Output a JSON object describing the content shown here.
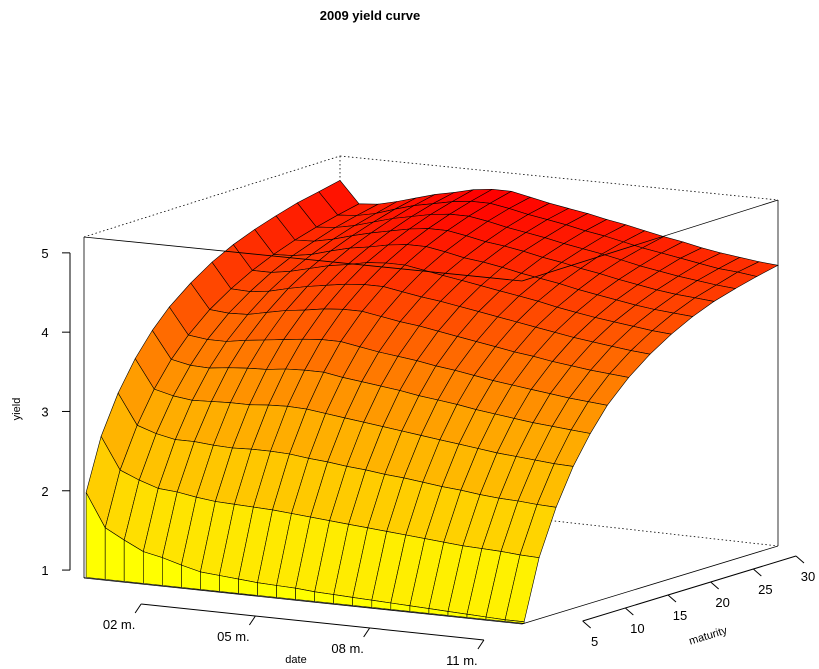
{
  "chart_data": {
    "type": "surface",
    "title": "2009 yield curve",
    "xlabel": "date",
    "ylabel": "maturity",
    "zlabel": "yield",
    "date_ticks": [
      "02 m.",
      "05 m.",
      "08 m.",
      "11 m."
    ],
    "maturity_ticks": [
      5,
      10,
      15,
      20,
      25,
      30
    ],
    "yield_ticks": [
      1,
      2,
      3,
      4,
      5
    ],
    "date_range": [
      0.5,
      12
    ],
    "maturity_range": [
      0,
      30
    ],
    "yield_range": [
      0.9,
      5.2
    ],
    "surface_grid": {
      "dates": [
        "0.5",
        "1.0",
        "1.5",
        "2.0",
        "2.5",
        "3.0",
        "3.5",
        "4.0",
        "4.5",
        "5.0",
        "5.5",
        "6.0",
        "6.5",
        "7.0",
        "7.5",
        "8.0",
        "8.5",
        "9.0",
        "9.5",
        "10.0",
        "10.5",
        "11.0",
        "11.5",
        "12.0"
      ],
      "maturities": [
        0.25,
        2,
        4,
        6,
        8,
        10,
        12.5,
        15,
        17.5,
        20,
        22.5,
        25,
        27.5,
        30
      ],
      "yields": [
        [
          1.97,
          2.62,
          3.1,
          3.47,
          3.76,
          3.99,
          4.21,
          4.39,
          4.53,
          4.64,
          4.73,
          4.81,
          4.87,
          4.93
        ],
        [
          1.55,
          2.22,
          2.72,
          3.11,
          3.42,
          3.66,
          3.9,
          4.08,
          4.23,
          4.35,
          4.45,
          4.53,
          4.6,
          4.66
        ],
        [
          1.42,
          2.12,
          2.64,
          3.05,
          3.37,
          3.63,
          3.88,
          4.07,
          4.23,
          4.36,
          4.46,
          4.55,
          4.62,
          4.68
        ],
        [
          1.3,
          2.04,
          2.59,
          3.02,
          3.36,
          3.63,
          3.89,
          4.1,
          4.27,
          4.4,
          4.51,
          4.6,
          4.67,
          4.74
        ],
        [
          1.25,
          2.02,
          2.59,
          3.03,
          3.39,
          3.67,
          3.94,
          4.16,
          4.33,
          4.47,
          4.58,
          4.67,
          4.75,
          4.81
        ],
        [
          1.18,
          1.98,
          2.57,
          3.04,
          3.41,
          3.7,
          3.99,
          4.21,
          4.39,
          4.53,
          4.64,
          4.74,
          4.82,
          4.88
        ],
        [
          1.12,
          1.95,
          2.56,
          3.04,
          3.42,
          3.73,
          4.02,
          4.25,
          4.43,
          4.57,
          4.69,
          4.79,
          4.87,
          4.93
        ],
        [
          1.1,
          1.94,
          2.57,
          3.06,
          3.45,
          3.76,
          4.06,
          4.29,
          4.48,
          4.62,
          4.74,
          4.84,
          4.92,
          4.99
        ],
        [
          1.08,
          1.93,
          2.57,
          3.07,
          3.46,
          3.78,
          4.08,
          4.31,
          4.5,
          4.65,
          4.77,
          4.87,
          4.95,
          5.02
        ],
        [
          1.06,
          1.92,
          2.56,
          3.06,
          3.46,
          3.78,
          4.08,
          4.31,
          4.5,
          4.65,
          4.77,
          4.87,
          4.95,
          5.02
        ],
        [
          1.05,
          1.9,
          2.53,
          3.03,
          3.42,
          3.74,
          4.04,
          4.27,
          4.46,
          4.61,
          4.73,
          4.83,
          4.91,
          4.97
        ],
        [
          1.04,
          1.88,
          2.51,
          3.0,
          3.39,
          3.7,
          4.0,
          4.23,
          4.42,
          4.56,
          4.68,
          4.78,
          4.86,
          4.92
        ],
        [
          1.02,
          1.86,
          2.48,
          2.97,
          3.36,
          3.67,
          3.97,
          4.2,
          4.38,
          4.53,
          4.65,
          4.74,
          4.82,
          4.88
        ],
        [
          1.01,
          1.84,
          2.46,
          2.94,
          3.33,
          3.64,
          3.93,
          4.16,
          4.34,
          4.49,
          4.61,
          4.7,
          4.78,
          4.84
        ],
        [
          1.0,
          1.82,
          2.43,
          2.91,
          3.29,
          3.6,
          3.89,
          4.12,
          4.3,
          4.44,
          4.56,
          4.65,
          4.73,
          4.79
        ],
        [
          0.99,
          1.8,
          2.41,
          2.88,
          3.26,
          3.57,
          3.85,
          4.08,
          4.26,
          4.4,
          4.52,
          4.61,
          4.69,
          4.75
        ],
        [
          0.98,
          1.78,
          2.38,
          2.85,
          3.23,
          3.53,
          3.81,
          4.04,
          4.22,
          4.36,
          4.47,
          4.57,
          4.64,
          4.7
        ],
        [
          0.97,
          1.76,
          2.35,
          2.82,
          3.19,
          3.49,
          3.77,
          4.0,
          4.17,
          4.31,
          4.43,
          4.52,
          4.59,
          4.65
        ],
        [
          0.96,
          1.74,
          2.33,
          2.79,
          3.16,
          3.46,
          3.74,
          3.96,
          4.13,
          4.27,
          4.38,
          4.47,
          4.55,
          4.61
        ],
        [
          0.95,
          1.72,
          2.3,
          2.76,
          3.13,
          3.43,
          3.7,
          3.92,
          4.09,
          4.23,
          4.34,
          4.43,
          4.51,
          4.56
        ],
        [
          0.94,
          1.71,
          2.28,
          2.74,
          3.1,
          3.4,
          3.67,
          3.89,
          4.06,
          4.19,
          4.3,
          4.39,
          4.47,
          4.52
        ],
        [
          0.93,
          1.7,
          2.27,
          2.72,
          3.08,
          3.37,
          3.64,
          3.86,
          4.03,
          4.16,
          4.27,
          4.36,
          4.43,
          4.49
        ],
        [
          0.92,
          1.68,
          2.25,
          2.7,
          3.06,
          3.35,
          3.62,
          3.83,
          4.0,
          4.14,
          4.25,
          4.33,
          4.41,
          4.46
        ],
        [
          0.92,
          1.67,
          2.24,
          2.69,
          3.04,
          3.33,
          3.6,
          3.81,
          3.98,
          4.12,
          4.23,
          4.31,
          4.38,
          4.44
        ]
      ]
    },
    "colors": {
      "low": "#ffff00",
      "mid": "#ffa500",
      "high": "#ff0000",
      "mesh": "#000000"
    }
  }
}
